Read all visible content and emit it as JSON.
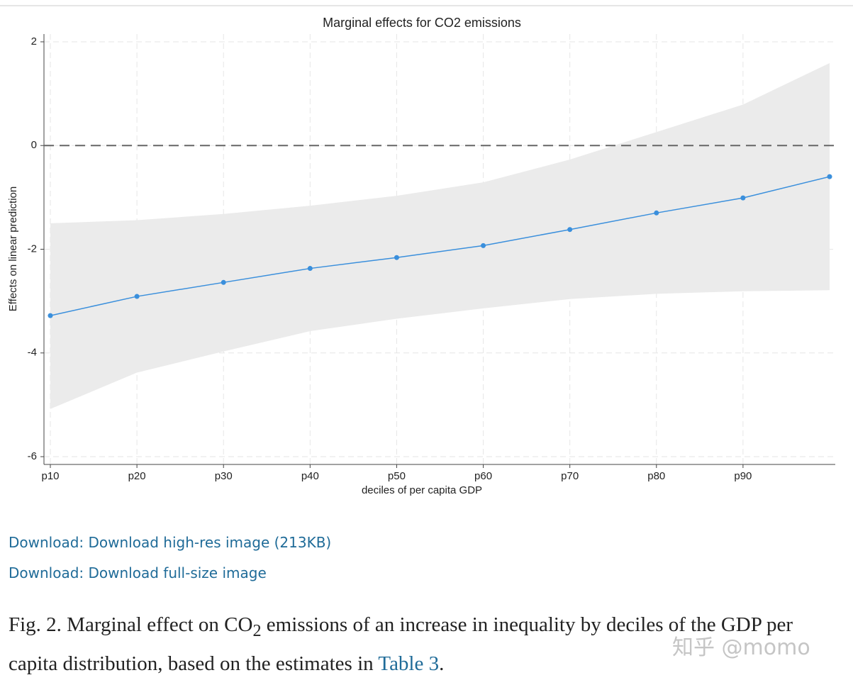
{
  "chart_data": {
    "type": "line",
    "title": "Marginal effects for CO2 emissions",
    "x_label": "deciles of per capita GDP",
    "y_label": "Effects on linear prediction",
    "categories": [
      "p10",
      "p20",
      "p30",
      "p40",
      "p50",
      "p60",
      "p70",
      "p80",
      "p90",
      null
    ],
    "values": [
      -3.28,
      -2.91,
      -2.64,
      -2.37,
      -2.16,
      -1.93,
      -1.62,
      -1.3,
      -1.01,
      -0.6
    ],
    "ci_lower": [
      -5.08,
      -4.38,
      -3.97,
      -3.58,
      -3.34,
      -3.14,
      -2.96,
      -2.86,
      -2.81,
      -2.79
    ],
    "ci_upper": [
      -1.5,
      -1.44,
      -1.32,
      -1.16,
      -0.97,
      -0.71,
      -0.27,
      0.26,
      0.79,
      1.59
    ],
    "color": "#3a8fdc",
    "band_color": "#ebebeb",
    "reference_line": 0,
    "ylim": [
      -6.15,
      2.15
    ],
    "yticks": [
      -6,
      -4,
      -2,
      0,
      2
    ],
    "grid": true
  },
  "links": [
    "Download: Download high-res image (213KB)",
    "Download: Download full-size image"
  ],
  "caption": {
    "before": "Fig. 2. Marginal effect on CO",
    "subscript": "2",
    "after": " emissions of an increase in inequality by deciles of the GDP per capita distribution, based on the estimates in ",
    "link": "Table 3",
    "end": "."
  },
  "watermark": "知乎 @momo"
}
